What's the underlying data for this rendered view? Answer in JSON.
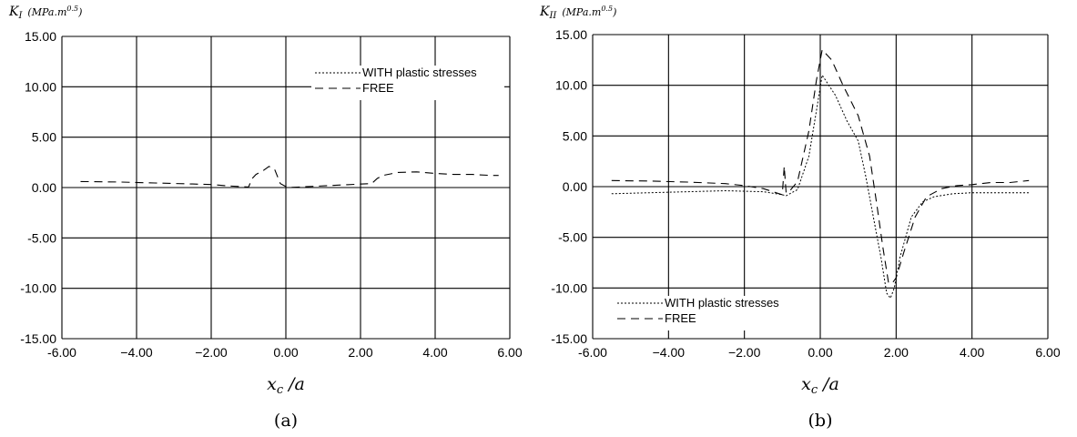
{
  "chart_data": [
    {
      "type": "line",
      "panel": "(a)",
      "ylabel_main": "K",
      "ylabel_sub": "I",
      "ylabel_unit": "(MPa.m",
      "ylabel_exp": "0.5",
      "ylabel_close": ")",
      "xlabel_main": "x",
      "xlabel_sub": "c",
      "xlabel_rest": " /a",
      "caption": "(a)",
      "xlim": [
        -6,
        6
      ],
      "ylim": [
        -15,
        15
      ],
      "xticks": [
        "-6.00",
        "−4.00",
        "−2.00",
        "0.00",
        "2.00",
        "4.00",
        "6.00"
      ],
      "yticks": [
        "15.00",
        "10.00",
        "5.00",
        "0.00",
        "-5.00",
        "-10.00",
        "-15.00"
      ],
      "grid": true,
      "legend_position": "top-right",
      "series": [
        {
          "name": "WITH plastic stresses",
          "style": "dotted",
          "x": [
            -5.5,
            -4,
            -2,
            -1,
            0,
            1,
            2,
            2.3,
            3,
            4,
            5,
            5.7
          ],
          "y": [
            0,
            0,
            0,
            0,
            0,
            0,
            0,
            0,
            0,
            0,
            0,
            0
          ]
        },
        {
          "name": "FREE",
          "style": "dashed",
          "x": [
            -5.5,
            -4.5,
            -3.5,
            -2.5,
            -2,
            -1.5,
            -1,
            -0.9,
            -0.8,
            -0.6,
            -0.45,
            -0.3,
            -0.15,
            0.05,
            2.3,
            2.45,
            2.6,
            3.0,
            3.5,
            4.0,
            4.5,
            5.0,
            5.5,
            5.7
          ],
          "y": [
            0.6,
            0.55,
            0.45,
            0.35,
            0.3,
            0.15,
            0.05,
            0.9,
            1.3,
            1.7,
            2.1,
            1.8,
            0.4,
            0.0,
            0.4,
            0.9,
            1.2,
            1.5,
            1.55,
            1.4,
            1.3,
            1.3,
            1.2,
            1.2
          ]
        }
      ]
    },
    {
      "type": "line",
      "panel": "(b)",
      "ylabel_main": "K",
      "ylabel_sub": "II",
      "ylabel_unit": "(MPa.m",
      "ylabel_exp": "0.5",
      "ylabel_close": ")",
      "xlabel_main": "x",
      "xlabel_sub": "c",
      "xlabel_rest": " /a",
      "caption": "(b)",
      "xlim": [
        -6,
        6
      ],
      "ylim": [
        -15,
        15
      ],
      "xticks": [
        "-6.00",
        "−4.00",
        "−2.00",
        "0.00",
        "2.00",
        "4.00",
        "6.00"
      ],
      "yticks": [
        "15.00",
        "10.00",
        "5.00",
        "0.00",
        "-5.00",
        "-10.00",
        "-15.00"
      ],
      "grid": true,
      "legend_position": "bottom-left",
      "series": [
        {
          "name": "WITH plastic stresses",
          "style": "dotted",
          "x": [
            -5.5,
            -4.5,
            -3.5,
            -2.5,
            -1.5,
            -1.0,
            -0.9,
            -0.6,
            -0.3,
            -0.1,
            0.05,
            0.4,
            0.7,
            1.0,
            1.2,
            1.4,
            1.6,
            1.75,
            1.85,
            1.95,
            2.1,
            2.4,
            2.7,
            3.0,
            3.5,
            4.0,
            4.5,
            5.0,
            5.5
          ],
          "y": [
            -0.7,
            -0.6,
            -0.5,
            -0.4,
            -0.5,
            -0.8,
            -0.9,
            -0.3,
            3.0,
            7.5,
            11.0,
            9.0,
            6.5,
            4.5,
            1.0,
            -3.0,
            -7.0,
            -10.5,
            -11.0,
            -10.0,
            -7.0,
            -3.0,
            -1.5,
            -1.0,
            -0.7,
            -0.6,
            -0.6,
            -0.6,
            -0.6
          ]
        },
        {
          "name": "FREE",
          "style": "dashed",
          "x": [
            -5.5,
            -4.5,
            -3.5,
            -2.5,
            -2.0,
            -1.5,
            -1.0,
            -0.95,
            -0.9,
            -0.8,
            -0.6,
            -0.3,
            -0.1,
            0.05,
            0.3,
            0.6,
            1.0,
            1.3,
            1.5,
            1.65,
            1.8,
            1.9,
            2.0,
            2.2,
            2.5,
            2.8,
            3.2,
            3.6,
            4.0,
            4.5,
            5.0,
            5.5
          ],
          "y": [
            0.6,
            0.55,
            0.45,
            0.3,
            0.1,
            -0.2,
            -0.8,
            2.0,
            -0.6,
            -0.4,
            0.5,
            5.5,
            10.5,
            13.5,
            12.5,
            10.0,
            7.0,
            3.0,
            -2.0,
            -6.0,
            -9.5,
            -9.5,
            -9.0,
            -6.5,
            -3.0,
            -1.0,
            -0.2,
            0.1,
            0.2,
            0.4,
            0.4,
            0.6
          ]
        }
      ]
    }
  ]
}
